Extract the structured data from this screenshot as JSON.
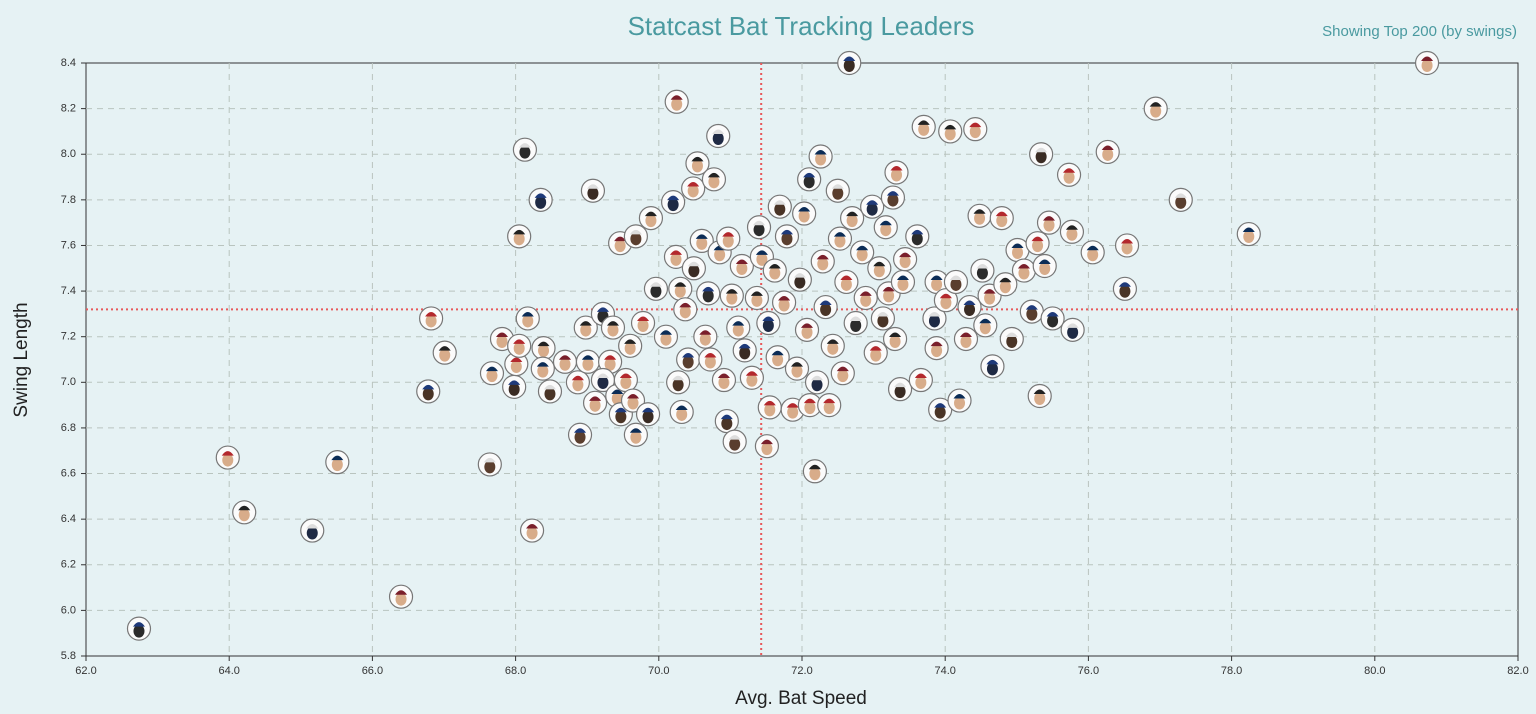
{
  "chart_data": {
    "type": "scatter",
    "title": "Statcast Bat Tracking Leaders",
    "subtitle": "Showing Top 200 (by swings)",
    "x_label": "Avg. Bat Speed",
    "y_label": "Swing Length",
    "xlim": [
      62,
      82
    ],
    "ylim": [
      5.8,
      8.4
    ],
    "xticks": [
      {
        "value": 62,
        "label": "62.0"
      },
      {
        "value": 64,
        "label": "64.0"
      },
      {
        "value": 66,
        "label": "66.0"
      },
      {
        "value": 68,
        "label": "68.0"
      },
      {
        "value": 70,
        "label": "70.0"
      },
      {
        "value": 72,
        "label": "72.0"
      },
      {
        "value": 74,
        "label": "74.0"
      },
      {
        "value": 76,
        "label": "76.0"
      },
      {
        "value": 78,
        "label": "78.0"
      },
      {
        "value": 80,
        "label": "80.0"
      },
      {
        "value": 82,
        "label": "82.0"
      }
    ],
    "yticks": [
      5.8,
      {
        "value": 6,
        "label": "6.0"
      },
      6.2,
      6.4,
      6.6,
      6.8,
      {
        "value": 7,
        "label": "7.0"
      },
      7.2,
      7.4,
      7.6,
      7.8,
      {
        "value": 8,
        "label": "8.0"
      },
      8.2,
      8.4
    ],
    "grid": true,
    "x_ref": 71.43,
    "y_ref": 7.32,
    "ref_color": "#e8585a",
    "x": [
      62.74,
      63.98,
      64.21,
      65.16,
      65.51,
      66.4,
      66.78,
      66.82,
      67.01,
      67.64,
      67.67,
      67.81,
      67.98,
      68.01,
      68.05,
      68.13,
      68.17,
      68.23,
      68.35,
      68.05,
      68.39,
      68.48,
      68.38,
      68.69,
      68.9,
      68.87,
      68.98,
      69.08,
      69.01,
      69.11,
      69.22,
      69.32,
      69.36,
      69.22,
      69.42,
      69.46,
      69.47,
      69.54,
      69.6,
      69.68,
      69.68,
      69.64,
      69.85,
      69.78,
      69.89,
      69.96,
      70.1,
      70.25,
      70.2,
      70.24,
      70.3,
      70.27,
      70.32,
      70.37,
      70.41,
      70.48,
      70.54,
      70.49,
      70.6,
      70.65,
      70.69,
      70.72,
      70.77,
      70.83,
      70.85,
      70.91,
      70.95,
      70.97,
      71.02,
      71.06,
      71.11,
      71.16,
      71.2,
      71.3,
      71.37,
      71.4,
      71.44,
      71.51,
      71.53,
      71.55,
      71.62,
      71.69,
      71.66,
      71.75,
      71.79,
      71.87,
      71.93,
      71.97,
      72.03,
      72.07,
      72.1,
      72.11,
      72.18,
      72.21,
      72.26,
      72.29,
      72.33,
      72.38,
      72.43,
      72.5,
      72.53,
      72.57,
      72.66,
      72.62,
      72.7,
      72.75,
      72.84,
      72.89,
      72.98,
      73.03,
      73.08,
      73.13,
      73.17,
      73.21,
      73.27,
      73.32,
      73.3,
      73.37,
      73.41,
      73.44,
      73.61,
      73.66,
      73.7,
      73.85,
      73.88,
      73.88,
      73.93,
      74.01,
      74.07,
      74.15,
      74.2,
      74.29,
      74.34,
      74.42,
      74.48,
      74.52,
      74.56,
      74.62,
      74.66,
      74.79,
      74.84,
      74.93,
      75.01,
      75.1,
      75.21,
      75.29,
      75.32,
      75.34,
      75.39,
      75.45,
      75.5,
      75.73,
      75.77,
      75.78,
      76.06,
      76.27,
      76.51,
      76.54,
      76.94,
      77.29,
      78.24,
      80.73
    ],
    "values": [
      5.92,
      6.67,
      6.43,
      6.35,
      6.65,
      6.06,
      6.96,
      7.28,
      7.13,
      6.64,
      7.04,
      7.19,
      6.98,
      7.08,
      7.64,
      8.02,
      7.28,
      6.35,
      7.8,
      7.16,
      7.15,
      6.96,
      7.06,
      7.09,
      6.77,
      7.0,
      7.24,
      7.84,
      7.09,
      6.91,
      7.3,
      7.09,
      7.24,
      7.01,
      6.94,
      7.61,
      6.86,
      7.01,
      7.16,
      7.64,
      6.77,
      6.92,
      6.86,
      7.26,
      7.72,
      7.41,
      7.2,
      8.23,
      7.79,
      7.55,
      7.41,
      7.0,
      6.87,
      7.32,
      7.1,
      7.85,
      7.96,
      7.5,
      7.62,
      7.2,
      7.39,
      7.1,
      7.89,
      8.08,
      7.57,
      7.01,
      6.83,
      7.63,
      7.38,
      6.74,
      7.24,
      7.51,
      7.14,
      7.02,
      7.37,
      7.68,
      7.55,
      6.72,
      7.26,
      6.89,
      7.49,
      7.77,
      7.11,
      7.35,
      7.64,
      6.88,
      7.06,
      7.45,
      7.74,
      7.23,
      7.89,
      6.9,
      6.61,
      7.0,
      7.99,
      7.53,
      7.33,
      6.9,
      7.16,
      7.84,
      7.63,
      7.04,
      8.4,
      7.44,
      7.72,
      7.26,
      7.57,
      7.37,
      7.77,
      7.13,
      7.5,
      7.28,
      7.68,
      7.39,
      7.81,
      7.92,
      7.19,
      6.97,
      7.44,
      7.54,
      7.64,
      7.01,
      8.12,
      7.28,
      7.44,
      7.15,
      6.88,
      7.36,
      8.1,
      7.44,
      6.92,
      7.19,
      7.33,
      8.11,
      7.73,
      7.49,
      7.25,
      7.38,
      7.07,
      7.72,
      7.43,
      7.19,
      7.58,
      7.49,
      7.31,
      7.61,
      6.94,
      8.0,
      7.51,
      7.7,
      7.28,
      7.91,
      7.66,
      7.23,
      7.57,
      8.01,
      7.41,
      7.6,
      8.2,
      7.8,
      7.65,
      8.4
    ]
  }
}
